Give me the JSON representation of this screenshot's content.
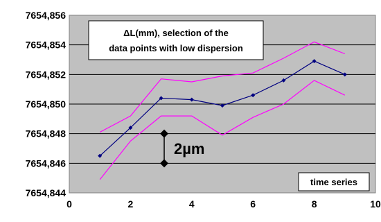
{
  "chart_data": {
    "type": "line",
    "title": "",
    "xlabel": "",
    "ylabel": "",
    "xlim": [
      0,
      10
    ],
    "ylim": [
      7654.844,
      7654.856
    ],
    "x_ticks": [
      0,
      2,
      4,
      6,
      8,
      10
    ],
    "x_tick_labels": [
      "0",
      "2",
      "4",
      "6",
      "8",
      "10"
    ],
    "y_ticks": [
      7654.844,
      7654.846,
      7654.848,
      7654.85,
      7654.852,
      7654.854,
      7654.856
    ],
    "y_tick_labels": [
      "7654,844",
      "7654,846",
      "7654,848",
      "7654,850",
      "7654,852",
      "7654,854",
      "7654,856"
    ],
    "grid": "horizontal",
    "plot_background": "#c0c0c0",
    "series": [
      {
        "color": "#000080",
        "marker": "diamond",
        "x": [
          1,
          2,
          3,
          4,
          5,
          6,
          7,
          8,
          9
        ],
        "y": [
          7654.8465,
          7654.8484,
          7654.8504,
          7654.8503,
          7654.8499,
          7654.8506,
          7654.8516,
          7654.8529,
          7654.852
        ]
      },
      {
        "color": "#ff00ff",
        "marker": "none",
        "x": [
          1,
          2,
          3,
          4,
          5,
          6,
          7,
          8,
          9
        ],
        "y": [
          7654.8481,
          7654.8492,
          7654.8517,
          7654.8515,
          7654.8519,
          7654.8521,
          7654.8531,
          7654.8542,
          7654.8534
        ]
      },
      {
        "color": "#ff00ff",
        "marker": "none",
        "x": [
          1,
          2,
          3,
          4,
          5,
          6,
          7,
          8,
          9
        ],
        "y": [
          7654.8449,
          7654.8475,
          7654.8492,
          7654.8492,
          7654.8479,
          7654.8491,
          7654.85,
          7654.8516,
          7654.8506
        ]
      }
    ],
    "annotations": {
      "description_line1": "ΔL(mm), selection of the",
      "description_line2": "data points with low dispersion",
      "scale_bar": {
        "x": 3.1,
        "y_from": 7654.846,
        "y_to": 7654.848,
        "label": "2µm"
      },
      "corner_label": "time series"
    }
  }
}
